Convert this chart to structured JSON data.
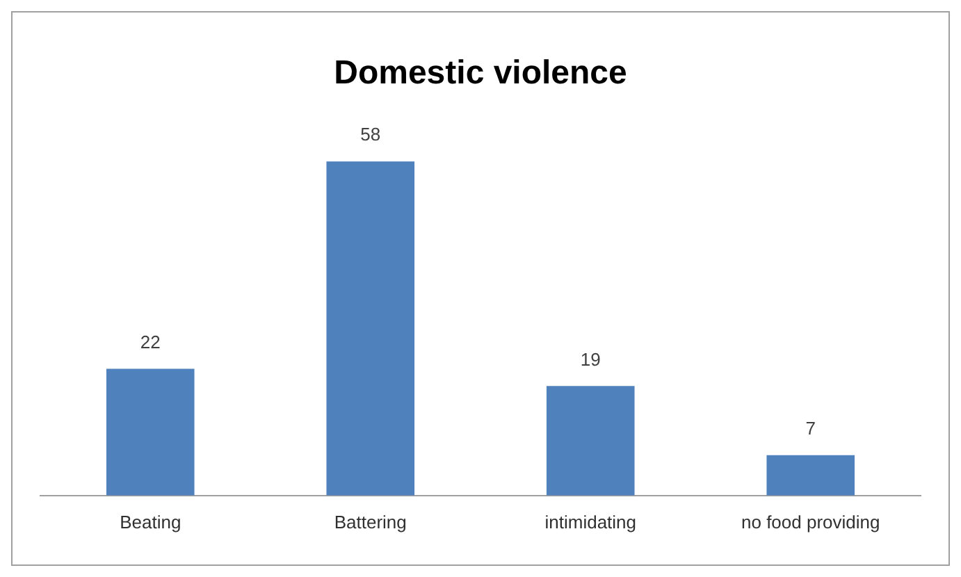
{
  "chart_data": {
    "type": "bar",
    "title": "Domestic violence",
    "categories": [
      "Beating",
      "Battering",
      "intimidating",
      "no food providing"
    ],
    "values": [
      22,
      58,
      19,
      7
    ],
    "color": "#4f81bd",
    "data_labels": true,
    "grid": false,
    "legend": false
  }
}
